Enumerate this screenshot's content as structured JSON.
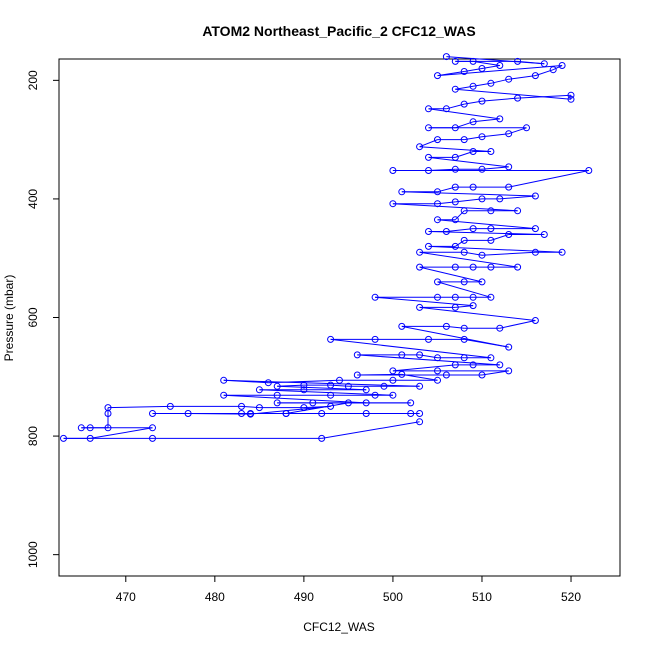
{
  "chart_data": {
    "type": "line",
    "title": "ATOM2 Northeast_Pacific_2 CFC12_WAS",
    "xlabel": "CFC12_WAS",
    "ylabel": "Pressure (mbar)",
    "xlim": [
      462.5,
      525.5
    ],
    "ylim": [
      1036,
      164
    ],
    "y_reversed": true,
    "x_ticks": [
      470,
      480,
      490,
      500,
      510,
      520
    ],
    "y_ticks": [
      200,
      400,
      600,
      800,
      1000
    ],
    "grid": false,
    "marker": "open-circle",
    "line_color": "#0000ff",
    "series": [
      {
        "points": [
          [
            503,
            776
          ],
          [
            492,
            804
          ],
          [
            473,
            804
          ],
          [
            463,
            804
          ],
          [
            466,
            804
          ],
          [
            473,
            786
          ],
          [
            466,
            786
          ],
          [
            465,
            786
          ],
          [
            468,
            786
          ],
          [
            468,
            762
          ],
          [
            468,
            752
          ],
          [
            475,
            750
          ],
          [
            483,
            750
          ],
          [
            485,
            752
          ],
          [
            490,
            752
          ],
          [
            493,
            750
          ],
          [
            484,
            763
          ],
          [
            477,
            762
          ],
          [
            488,
            762
          ],
          [
            492,
            762
          ],
          [
            497,
            762
          ],
          [
            502,
            762
          ],
          [
            503,
            762
          ],
          [
            484,
            762
          ],
          [
            473,
            762
          ],
          [
            483,
            762
          ],
          [
            488,
            762
          ],
          [
            495,
            744
          ],
          [
            502,
            744
          ],
          [
            491,
            744
          ],
          [
            487,
            744
          ],
          [
            497,
            744
          ],
          [
            481,
            731
          ],
          [
            487,
            731
          ],
          [
            493,
            731
          ],
          [
            498,
            731
          ],
          [
            500,
            731
          ],
          [
            485,
            722
          ],
          [
            490,
            722
          ],
          [
            497,
            722
          ],
          [
            487,
            716
          ],
          [
            490,
            714
          ],
          [
            493,
            714
          ],
          [
            495,
            716
          ],
          [
            499,
            716
          ],
          [
            503,
            716
          ],
          [
            481,
            706
          ],
          [
            486,
            710
          ],
          [
            494,
            706
          ],
          [
            500,
            706
          ],
          [
            505,
            706
          ],
          [
            501,
            696
          ],
          [
            496,
            697
          ],
          [
            506,
            697
          ],
          [
            510,
            697
          ],
          [
            513,
            690
          ],
          [
            505,
            690
          ],
          [
            500,
            690
          ],
          [
            507,
            680
          ],
          [
            509,
            680
          ],
          [
            512,
            680
          ],
          [
            496,
            663
          ],
          [
            501,
            663
          ],
          [
            503,
            663
          ],
          [
            505,
            668
          ],
          [
            508,
            668
          ],
          [
            511,
            668
          ],
          [
            493,
            637
          ],
          [
            498,
            637
          ],
          [
            504,
            637
          ],
          [
            508,
            637
          ],
          [
            513,
            650
          ],
          [
            501,
            615
          ],
          [
            506,
            615
          ],
          [
            508,
            618
          ],
          [
            512,
            618
          ],
          [
            516,
            605
          ],
          [
            503,
            583
          ],
          [
            507,
            583
          ],
          [
            509,
            580
          ],
          [
            498,
            566
          ],
          [
            505,
            566
          ],
          [
            507,
            566
          ],
          [
            509,
            566
          ],
          [
            511,
            566
          ],
          [
            505,
            540
          ],
          [
            508,
            540
          ],
          [
            510,
            540
          ],
          [
            503,
            515
          ],
          [
            507,
            515
          ],
          [
            509,
            515
          ],
          [
            511,
            515
          ],
          [
            514,
            515
          ],
          [
            503,
            490
          ],
          [
            508,
            490
          ],
          [
            510,
            495
          ],
          [
            516,
            490
          ],
          [
            519,
            490
          ],
          [
            504,
            480
          ],
          [
            507,
            480
          ],
          [
            508,
            470
          ],
          [
            511,
            470
          ],
          [
            513,
            460
          ],
          [
            517,
            460
          ],
          [
            504,
            455
          ],
          [
            506,
            455
          ],
          [
            509,
            450
          ],
          [
            511,
            450
          ],
          [
            516,
            450
          ],
          [
            505,
            435
          ],
          [
            507,
            435
          ],
          [
            508,
            420
          ],
          [
            511,
            420
          ],
          [
            514,
            420
          ],
          [
            500,
            408
          ],
          [
            505,
            408
          ],
          [
            507,
            405
          ],
          [
            510,
            400
          ],
          [
            512,
            400
          ],
          [
            516,
            395
          ],
          [
            501,
            388
          ],
          [
            505,
            388
          ],
          [
            507,
            380
          ],
          [
            509,
            380
          ],
          [
            513,
            380
          ],
          [
            522,
            352
          ],
          [
            500,
            352
          ],
          [
            504,
            352
          ],
          [
            507,
            350
          ],
          [
            510,
            350
          ],
          [
            513,
            346
          ],
          [
            504,
            330
          ],
          [
            507,
            330
          ],
          [
            509,
            320
          ],
          [
            511,
            320
          ],
          [
            503,
            312
          ],
          [
            505,
            300
          ],
          [
            508,
            300
          ],
          [
            510,
            295
          ],
          [
            513,
            290
          ],
          [
            515,
            280
          ],
          [
            504,
            280
          ],
          [
            507,
            280
          ],
          [
            509,
            270
          ],
          [
            512,
            265
          ],
          [
            504,
            248
          ],
          [
            506,
            248
          ],
          [
            508,
            240
          ],
          [
            510,
            235
          ],
          [
            514,
            230
          ],
          [
            520,
            225
          ],
          [
            520,
            232
          ],
          [
            507,
            215
          ],
          [
            509,
            210
          ],
          [
            511,
            205
          ],
          [
            513,
            198
          ],
          [
            516,
            192
          ],
          [
            518,
            182
          ],
          [
            519,
            175
          ],
          [
            505,
            192
          ],
          [
            508,
            185
          ],
          [
            510,
            180
          ],
          [
            512,
            175
          ],
          [
            509,
            168
          ],
          [
            507,
            168
          ],
          [
            514,
            168
          ],
          [
            517,
            172
          ],
          [
            506,
            160
          ]
        ]
      }
    ]
  }
}
